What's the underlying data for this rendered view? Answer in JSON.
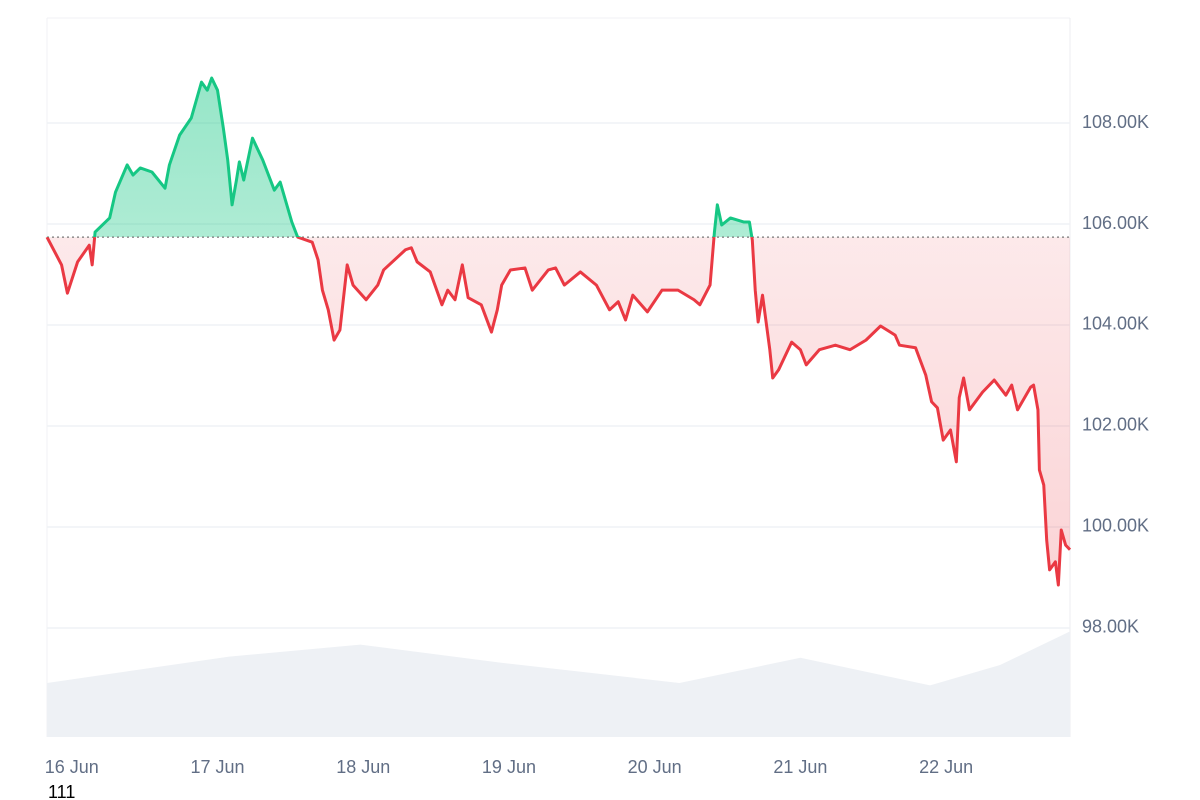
{
  "chart_data": {
    "type": "line",
    "baseline": "first",
    "grid": true,
    "footnote": "111",
    "xlim": [
      -0.17,
      6.85
    ],
    "xticks": [
      {
        "value": 0,
        "label": "16 Jun"
      },
      {
        "value": 1,
        "label": "17 Jun"
      },
      {
        "value": 2,
        "label": "18 Jun"
      },
      {
        "value": 3,
        "label": "19 Jun"
      },
      {
        "value": 4,
        "label": "20 Jun"
      },
      {
        "value": 5,
        "label": "21 Jun"
      },
      {
        "value": 6,
        "label": "22 Jun"
      }
    ],
    "ylim": [
      95840,
      110080
    ],
    "yticks": [
      {
        "value": 98000,
        "label": "98.00K"
      },
      {
        "value": 100000,
        "label": "100.00K"
      },
      {
        "value": 102000,
        "label": "102.00K"
      },
      {
        "value": 104000,
        "label": "104.00K"
      },
      {
        "value": 106000,
        "label": "106.00K"
      },
      {
        "value": 108000,
        "label": "108.00K"
      }
    ],
    "x": [
      -0.17,
      -0.07,
      -0.03,
      0.04,
      0.12,
      0.14,
      0.16,
      0.26,
      0.3,
      0.38,
      0.42,
      0.47,
      0.55,
      0.64,
      0.67,
      0.74,
      0.82,
      0.89,
      0.93,
      0.96,
      1.0,
      1.04,
      1.07,
      1.1,
      1.13,
      1.15,
      1.18,
      1.24,
      1.31,
      1.39,
      1.43,
      1.51,
      1.55,
      1.65,
      1.69,
      1.72,
      1.76,
      1.8,
      1.84,
      1.89,
      1.93,
      2.02,
      2.1,
      2.14,
      2.29,
      2.33,
      2.37,
      2.46,
      2.54,
      2.58,
      2.63,
      2.68,
      2.72,
      2.81,
      2.88,
      2.92,
      2.95,
      3.01,
      3.11,
      3.16,
      3.27,
      3.32,
      3.38,
      3.49,
      3.6,
      3.69,
      3.75,
      3.8,
      3.85,
      3.95,
      4.05,
      4.16,
      4.27,
      4.31,
      4.38,
      4.41,
      4.43,
      4.46,
      4.52,
      4.61,
      4.65,
      4.67,
      4.69,
      4.71,
      4.74,
      4.79,
      4.81,
      4.85,
      4.94,
      5.0,
      5.04,
      5.13,
      5.24,
      5.34,
      5.45,
      5.55,
      5.65,
      5.68,
      5.79,
      5.86,
      5.9,
      5.94,
      5.98,
      6.03,
      6.07,
      6.09,
      6.12,
      6.16,
      6.25,
      6.33,
      6.41,
      6.45,
      6.49,
      6.58,
      6.6,
      6.63,
      6.64,
      6.67,
      6.69,
      6.71,
      6.75,
      6.77,
      6.79,
      6.82,
      6.85
    ],
    "series": [
      {
        "color": "#ea3943",
        "color_above": "#16c784",
        "values": [
          105740,
          105190,
          104630,
          105250,
          105580,
          105190,
          105840,
          106120,
          106630,
          107170,
          106970,
          107110,
          107030,
          106710,
          107170,
          107760,
          108100,
          108810,
          108650,
          108890,
          108650,
          107900,
          107270,
          106380,
          106870,
          107230,
          106870,
          107700,
          107270,
          106670,
          106830,
          106040,
          105740,
          105640,
          105290,
          104690,
          104300,
          103700,
          103900,
          105190,
          104790,
          104500,
          104790,
          105090,
          105490,
          105530,
          105250,
          105050,
          104400,
          104690,
          104500,
          105190,
          104540,
          104400,
          103860,
          104300,
          104790,
          105090,
          105130,
          104690,
          105090,
          105130,
          104790,
          105050,
          104790,
          104300,
          104460,
          104100,
          104590,
          104260,
          104690,
          104690,
          104500,
          104400,
          104790,
          105840,
          106380,
          105980,
          106120,
          106040,
          106040,
          105680,
          104690,
          104060,
          104590,
          103510,
          102950,
          103110,
          103660,
          103510,
          103210,
          103510,
          103600,
          103510,
          103700,
          103980,
          103800,
          103600,
          103550,
          103010,
          102480,
          102360,
          101720,
          101920,
          101290,
          102560,
          102950,
          102320,
          102670,
          102910,
          102610,
          102810,
          102320,
          102770,
          102810,
          102320,
          101130,
          100830,
          99740,
          99150,
          99310,
          98850,
          99940,
          99640,
          99550
        ]
      }
    ],
    "volume": {
      "color": "#eef1f5",
      "axis": "y2",
      "x": [
        -0.17,
        1.08,
        1.98,
        2.94,
        4.17,
        5.0,
        5.89,
        6.37,
        6.85
      ],
      "values": [
        45,
        67,
        77,
        62,
        45,
        66,
        43,
        60,
        88
      ]
    },
    "y2lim": [
      0,
      100
    ]
  }
}
